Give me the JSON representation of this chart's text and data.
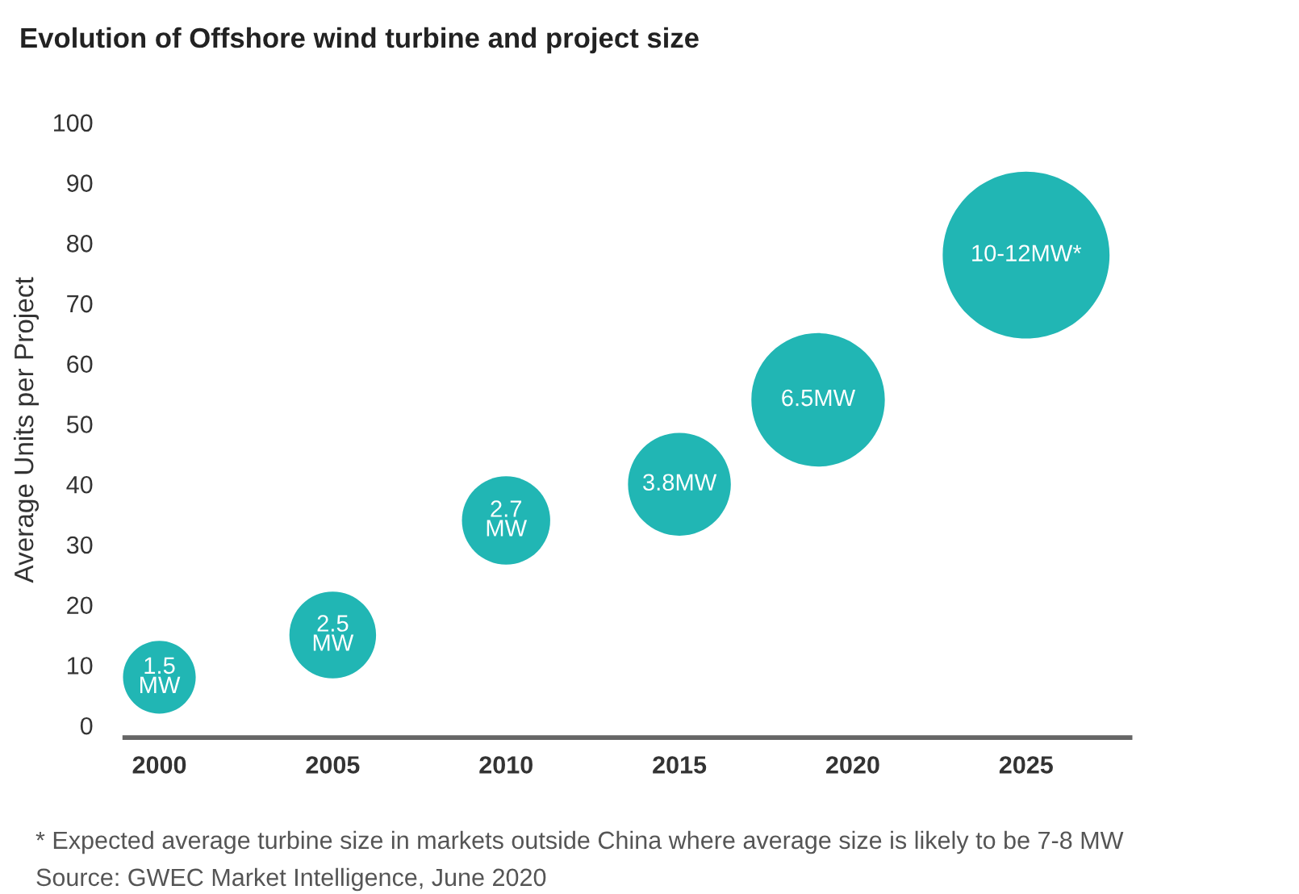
{
  "chart_data": {
    "type": "bubble",
    "title": "Evolution of Offshore wind turbine and project size",
    "ylabel": "Average Units per Project",
    "x": [
      2000,
      2005,
      2010,
      2015,
      2019,
      2025
    ],
    "values": [
      8,
      15,
      34,
      40,
      54,
      78
    ],
    "sizes": [
      0.19,
      0.27,
      0.28,
      0.38,
      0.64,
      1
    ],
    "color": "#21b6b4",
    "xlim": [
      1999,
      2028
    ],
    "xticks": [
      2000,
      2005,
      2010,
      2015,
      2020,
      2025
    ],
    "ylim": [
      -2,
      100
    ],
    "yticks": [
      0,
      10,
      20,
      30,
      40,
      50,
      60,
      70,
      80,
      90,
      100
    ],
    "grid": false,
    "legend": false,
    "annotations": [
      {
        "text": "1.5\nMW",
        "x": 2000,
        "y": 8
      },
      {
        "text": "2.5\nMW",
        "x": 2005,
        "y": 15
      },
      {
        "text": "2.7\nMW",
        "x": 2010,
        "y": 34
      },
      {
        "text": "3.8MW",
        "x": 2015,
        "y": 40
      },
      {
        "text": "6.5MW",
        "x": 2019,
        "y": 54
      },
      {
        "text": "10-12MW*",
        "x": 2025,
        "y": 78
      },
      "* Expected average turbine size in markets outside China where average size is likely to be 7-8 MW",
      "Source: GWEC Market Intelligence, June 2020"
    ]
  }
}
